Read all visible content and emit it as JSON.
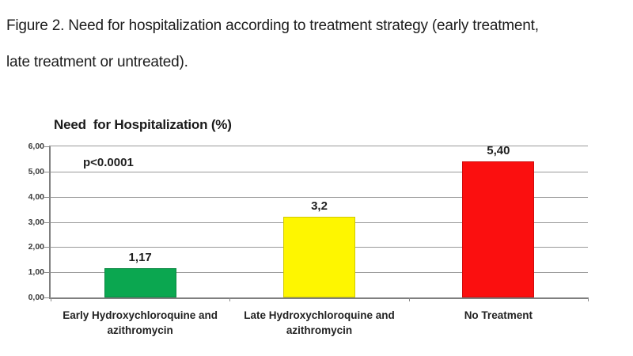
{
  "caption": {
    "line1": "Figure 2. Need for hospitalization according to treatment strategy (early treatment,",
    "line2": "late treatment or untreated)."
  },
  "chart_data": {
    "type": "bar",
    "title": "Need  for Hospitalization (%)",
    "annotation": "p<0.0001",
    "categories": [
      "Early Hydroxychloroquine and azithromycin",
      "Late Hydroxychloroquine and azithromycin",
      "No Treatment"
    ],
    "values": [
      1.17,
      3.2,
      5.4
    ],
    "value_labels": [
      "1,17",
      "3,2",
      "5,40"
    ],
    "bar_colors": [
      "#0ba750",
      "#fef600",
      "#fb0f0f"
    ],
    "ylim": [
      0,
      6
    ],
    "ytick_labels": [
      "6,00",
      "5,00",
      "4,00",
      "3,00",
      "2,00",
      "1,00",
      "0,00"
    ],
    "grid": true,
    "legend": "none",
    "xlabel": "",
    "ylabel": ""
  },
  "style": {
    "gridline_color": "#9a9a9a",
    "axis_color": "#7f7f7f",
    "text_color": "#1f1f1f"
  }
}
